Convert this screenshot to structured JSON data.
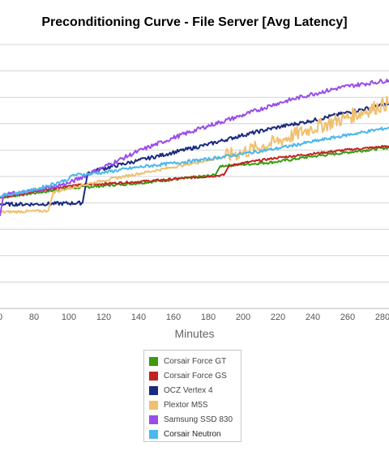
{
  "chart_data": {
    "type": "line",
    "title": "Preconditioning Curve - File Server [Avg Latency]",
    "xlabel": "Minutes",
    "ylabel": "",
    "x_ticks": [
      "0",
      "80",
      "100",
      "120",
      "140",
      "160",
      "180",
      "200",
      "220",
      "240",
      "260",
      "280"
    ],
    "xlim": [
      60,
      286
    ],
    "ylim": [
      0,
      10
    ],
    "grid": true,
    "legend_position": "bottom",
    "series": [
      {
        "name": "Corsair Force GT",
        "color": "#3a9a12",
        "points": [
          [
            60,
            4.2
          ],
          [
            100,
            4.55
          ],
          [
            140,
            4.75
          ],
          [
            185,
            5.05
          ],
          [
            188,
            5.4
          ],
          [
            200,
            5.45
          ],
          [
            220,
            5.55
          ],
          [
            240,
            5.75
          ],
          [
            260,
            5.9
          ],
          [
            286,
            6.1
          ]
        ]
      },
      {
        "name": "Corsair Force GS",
        "color": "#c0251f",
        "points": [
          [
            60,
            4.2
          ],
          [
            100,
            4.65
          ],
          [
            140,
            4.8
          ],
          [
            190,
            5.05
          ],
          [
            193,
            5.4
          ],
          [
            200,
            5.5
          ],
          [
            220,
            5.7
          ],
          [
            240,
            5.85
          ],
          [
            260,
            6.0
          ],
          [
            286,
            6.15
          ]
        ]
      },
      {
        "name": "OCZ Vertex 4",
        "color": "#1a2a80",
        "points": [
          [
            60,
            3.95
          ],
          [
            80,
            3.95
          ],
          [
            108,
            4.0
          ],
          [
            111,
            5.15
          ],
          [
            120,
            5.3
          ],
          [
            140,
            5.6
          ],
          [
            160,
            5.9
          ],
          [
            180,
            6.2
          ],
          [
            200,
            6.55
          ],
          [
            220,
            6.85
          ],
          [
            240,
            7.1
          ],
          [
            260,
            7.4
          ],
          [
            286,
            7.75
          ]
        ]
      },
      {
        "name": "Plextor M5S",
        "color": "#f0c070",
        "points": [
          [
            60,
            3.65
          ],
          [
            88,
            3.7
          ],
          [
            91,
            4.4
          ],
          [
            100,
            4.55
          ],
          [
            120,
            4.85
          ],
          [
            140,
            5.1
          ],
          [
            160,
            5.35
          ],
          [
            180,
            5.6
          ],
          [
            200,
            5.9
          ],
          [
            220,
            6.3
          ],
          [
            240,
            6.8
          ],
          [
            260,
            7.2
          ],
          [
            286,
            7.8
          ]
        ]
      },
      {
        "name": "Samsung SSD 830",
        "color": "#9b4de8",
        "points": [
          [
            60,
            3.5
          ],
          [
            62,
            4.3
          ],
          [
            80,
            4.45
          ],
          [
            100,
            4.75
          ],
          [
            120,
            5.35
          ],
          [
            140,
            5.95
          ],
          [
            160,
            6.45
          ],
          [
            180,
            6.9
          ],
          [
            200,
            7.3
          ],
          [
            220,
            7.75
          ],
          [
            240,
            8.1
          ],
          [
            260,
            8.4
          ],
          [
            286,
            8.65
          ]
        ]
      },
      {
        "name": "Corsair Neutron",
        "color": "#4ab8ec",
        "points": [
          [
            60,
            4.25
          ],
          [
            80,
            4.5
          ],
          [
            100,
            4.9
          ],
          [
            102,
            5.05
          ],
          [
            120,
            5.15
          ],
          [
            140,
            5.35
          ],
          [
            160,
            5.5
          ],
          [
            180,
            5.65
          ],
          [
            200,
            5.85
          ],
          [
            220,
            6.05
          ],
          [
            240,
            6.3
          ],
          [
            260,
            6.55
          ],
          [
            286,
            6.85
          ]
        ]
      }
    ]
  }
}
